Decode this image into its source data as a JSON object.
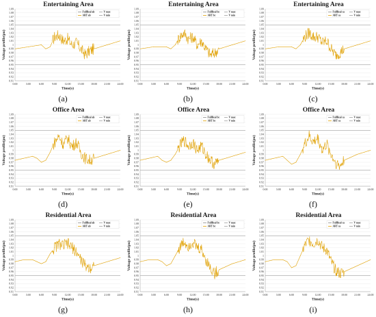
{
  "figure": {
    "time_labels": [
      "0:00",
      "3:00",
      "6:00",
      "9:00",
      "12:00",
      "15:00",
      "18:00",
      "21:00",
      "24:00"
    ],
    "y_tick_labels": [
      "0.91",
      "0.92",
      "0.93",
      "0.94",
      "0.95",
      "0.96",
      "0.97",
      "0.98",
      "0.99",
      "1",
      "1.01",
      "1.02",
      "1.03",
      "1.04",
      "1.05",
      "1.06",
      "1.07",
      "1.08",
      "1.09"
    ],
    "xlabel": "Time(s)",
    "ylabel": "Voltage profile(pu)",
    "colors": {
      "fullreal": "#8a8a8a",
      "art": "#e0a000",
      "vmax": "#a0a0a0",
      "vmin": "#a0a0a0"
    }
  },
  "chart_data": [
    {
      "type": "line",
      "panel_label": "(a)",
      "title": "Entertaining Area",
      "legend": [
        "FullReal ab",
        "ART ab",
        "V max",
        "V min"
      ],
      "ylim": [
        0.91,
        1.09
      ],
      "xlim": [
        0,
        24
      ],
      "vmax": 1.05,
      "vmin": 0.95,
      "x": [
        0,
        3,
        6,
        7,
        8,
        9,
        10,
        11,
        12,
        13,
        14,
        15,
        16,
        17,
        18,
        21,
        24
      ],
      "y": [
        0.99,
        0.995,
        1.0,
        0.99,
        0.995,
        1.02,
        1.025,
        1.01,
        1.015,
        1.0,
        1.005,
        0.99,
        0.975,
        0.985,
        0.99,
        1.0,
        1.01
      ]
    },
    {
      "type": "line",
      "panel_label": "(b)",
      "title": "Entertaining Area",
      "legend": [
        "FullReal bc",
        "ART bc",
        "V max",
        "V min"
      ],
      "ylim": [
        0.91,
        1.09
      ],
      "xlim": [
        0,
        24
      ],
      "vmax": 1.05,
      "vmin": 0.95,
      "x": [
        0,
        3,
        6,
        7,
        8,
        9,
        10,
        11,
        12,
        13,
        14,
        15,
        16,
        17,
        18,
        21,
        24
      ],
      "y": [
        0.99,
        0.995,
        0.995,
        0.99,
        1.0,
        1.02,
        1.03,
        1.015,
        1.02,
        1.0,
        1.01,
        0.99,
        0.975,
        0.98,
        0.99,
        1.0,
        1.01
      ]
    },
    {
      "type": "line",
      "panel_label": "(c)",
      "title": "Entertaining Area",
      "legend": [
        "FullReal ca",
        "ART ca",
        "V max",
        "V min"
      ],
      "ylim": [
        0.91,
        1.09
      ],
      "xlim": [
        0,
        24
      ],
      "vmax": 1.05,
      "vmin": 0.95,
      "x": [
        0,
        3,
        6,
        7,
        8,
        9,
        10,
        11,
        12,
        13,
        14,
        15,
        16,
        17,
        18,
        21,
        24
      ],
      "y": [
        0.99,
        0.995,
        0.995,
        0.99,
        1.0,
        1.02,
        1.03,
        1.02,
        1.02,
        1.005,
        1.01,
        0.99,
        0.975,
        0.98,
        0.99,
        1.0,
        1.01
      ]
    },
    {
      "type": "line",
      "panel_label": "(d)",
      "title": "Office Area",
      "legend": [
        "FullReal ab",
        "ART ab",
        "V max",
        "V min"
      ],
      "ylim": [
        0.91,
        1.09
      ],
      "xlim": [
        0,
        24
      ],
      "vmax": 1.05,
      "vmin": 0.95,
      "x": [
        0,
        2,
        4,
        5,
        6,
        7,
        8,
        9,
        10,
        11,
        12,
        13,
        14,
        15,
        16,
        17,
        18,
        21,
        24
      ],
      "y": [
        0.975,
        0.98,
        0.985,
        0.98,
        0.97,
        0.975,
        0.995,
        1.02,
        1.035,
        1.015,
        1.03,
        1.01,
        1.02,
        0.995,
        0.98,
        0.975,
        0.98,
        0.99,
        1.0
      ]
    },
    {
      "type": "line",
      "panel_label": "(e)",
      "title": "Office Area",
      "legend": [
        "FullReal bc",
        "ART bc",
        "V max",
        "V min"
      ],
      "ylim": [
        0.91,
        1.09
      ],
      "xlim": [
        0,
        24
      ],
      "vmax": 1.05,
      "vmin": 0.95,
      "x": [
        0,
        2,
        4,
        5,
        6,
        7,
        8,
        9,
        10,
        11,
        12,
        13,
        14,
        15,
        16,
        17,
        18,
        21,
        24
      ],
      "y": [
        0.975,
        0.98,
        0.985,
        0.975,
        0.97,
        0.975,
        0.99,
        1.01,
        1.025,
        1.01,
        1.02,
        1.0,
        1.01,
        0.99,
        0.975,
        0.965,
        0.975,
        0.985,
        0.995
      ]
    },
    {
      "type": "line",
      "panel_label": "(f)",
      "title": "Office Area",
      "legend": [
        "FullReal ca",
        "ART ca",
        "V max",
        "V min"
      ],
      "ylim": [
        0.91,
        1.09
      ],
      "xlim": [
        0,
        24
      ],
      "vmax": 1.05,
      "vmin": 0.95,
      "x": [
        0,
        2,
        4,
        5,
        6,
        7,
        8,
        9,
        10,
        11,
        12,
        13,
        14,
        15,
        16,
        17,
        18,
        21,
        24
      ],
      "y": [
        0.975,
        0.98,
        0.985,
        0.975,
        0.965,
        0.97,
        0.99,
        1.015,
        1.035,
        1.02,
        1.03,
        1.0,
        1.015,
        0.99,
        0.97,
        0.96,
        0.975,
        0.99,
        1.0
      ]
    },
    {
      "type": "line",
      "panel_label": "(g)",
      "title": "Residential Area",
      "legend": [
        "FullReal ab",
        "ART ab",
        "V max",
        "V min"
      ],
      "ylim": [
        0.91,
        1.09
      ],
      "xlim": [
        0,
        24
      ],
      "vmax": 1.05,
      "vmin": 0.95,
      "x": [
        0,
        2,
        4,
        5,
        6,
        7,
        8,
        9,
        10,
        11,
        12,
        13,
        14,
        15,
        16,
        17,
        18,
        21,
        24
      ],
      "y": [
        0.985,
        0.99,
        0.99,
        0.985,
        0.98,
        0.985,
        1.005,
        1.02,
        1.03,
        1.025,
        1.03,
        1.02,
        1.01,
        0.99,
        0.975,
        0.97,
        0.975,
        0.985,
        0.995
      ]
    },
    {
      "type": "line",
      "panel_label": "(h)",
      "title": "Residential Area",
      "legend": [
        "FullReal bc",
        "ART bc",
        "V max",
        "V min"
      ],
      "ylim": [
        0.91,
        1.09
      ],
      "xlim": [
        0,
        24
      ],
      "vmax": 1.05,
      "vmin": 0.95,
      "x": [
        0,
        2,
        4,
        5,
        6,
        7,
        8,
        9,
        10,
        11,
        12,
        13,
        14,
        15,
        16,
        17,
        18,
        21,
        24
      ],
      "y": [
        0.985,
        0.99,
        0.99,
        0.985,
        0.975,
        0.98,
        1.0,
        1.02,
        1.035,
        1.025,
        1.035,
        1.02,
        1.015,
        0.99,
        0.97,
        0.955,
        0.965,
        0.98,
        0.99
      ]
    },
    {
      "type": "line",
      "panel_label": "(i)",
      "title": "Residential Area",
      "legend": [
        "FullReal ca",
        "ART ca",
        "V max",
        "V min"
      ],
      "ylim": [
        0.91,
        1.09
      ],
      "xlim": [
        0,
        24
      ],
      "vmax": 1.05,
      "vmin": 0.95,
      "x": [
        0,
        2,
        4,
        5,
        6,
        7,
        8,
        9,
        10,
        11,
        12,
        13,
        14,
        15,
        16,
        17,
        18,
        21,
        24
      ],
      "y": [
        0.985,
        0.99,
        0.99,
        0.985,
        0.97,
        0.975,
        1.0,
        1.025,
        1.04,
        1.03,
        1.04,
        1.02,
        1.015,
        0.985,
        0.965,
        0.955,
        0.96,
        0.975,
        0.99
      ]
    }
  ]
}
